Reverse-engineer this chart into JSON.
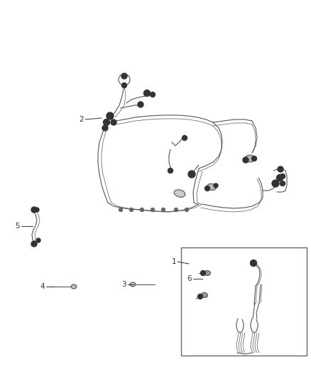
{
  "bg_color": "#ffffff",
  "lc": "#555555",
  "lc_dark": "#333333",
  "lc_light": "#888888",
  "fig_width": 4.38,
  "fig_height": 5.33,
  "dpi": 100,
  "lw": 0.8,
  "lw_thin": 0.5,
  "connector_size": 0.006,
  "connector_color": "#333333"
}
